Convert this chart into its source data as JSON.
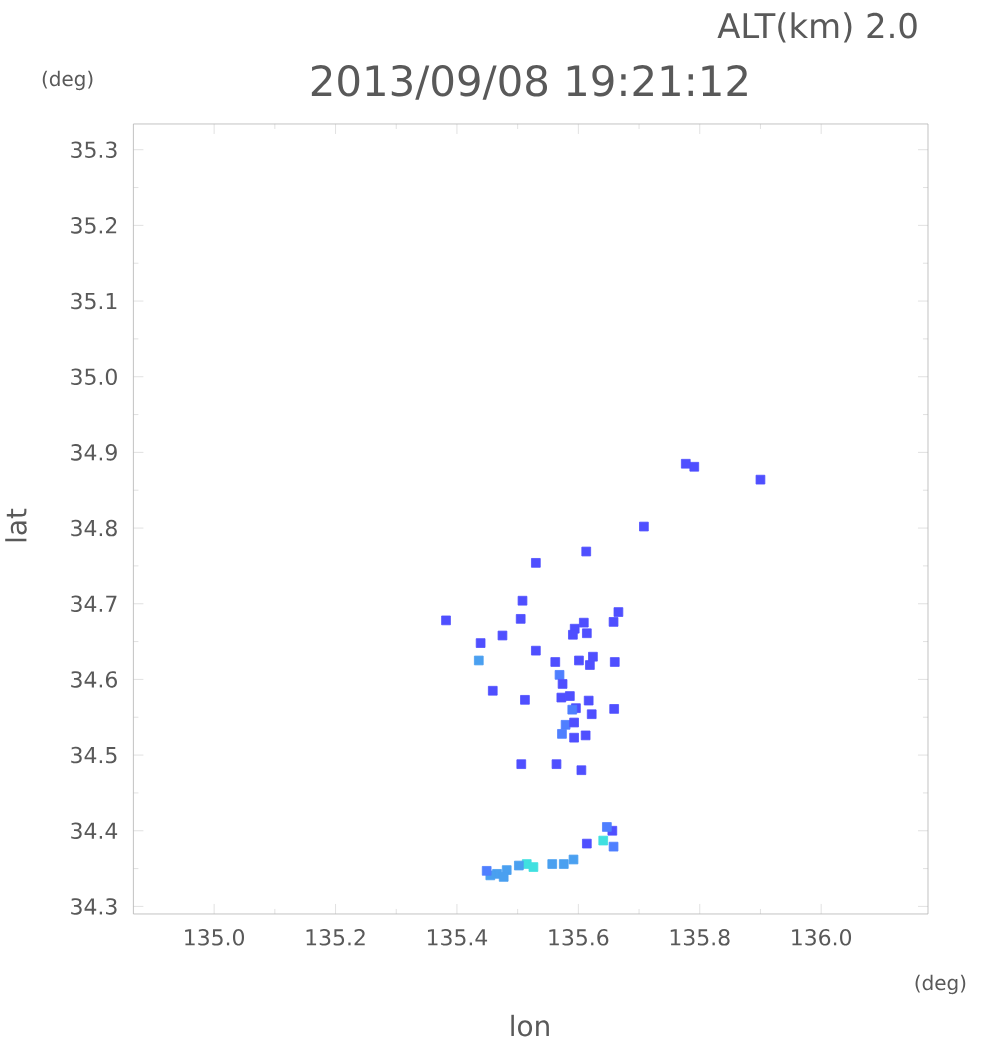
{
  "chart_data": {
    "type": "scatter",
    "title": "2013/09/08 19:21:12",
    "xlabel": "lon",
    "ylabel": "lat",
    "annotations": [
      "ALT(km) 2.0",
      "(deg)",
      "(deg)"
    ],
    "xlim": [
      134.867,
      136.176
    ],
    "ylim": [
      34.29,
      35.334
    ],
    "xticks": [
      {
        "value": 135.0,
        "label": "135.0"
      },
      {
        "value": 135.2,
        "label": "135.2"
      },
      {
        "value": 135.4,
        "label": "135.4"
      },
      {
        "value": 135.6,
        "label": "135.6"
      },
      {
        "value": 135.8,
        "label": "135.8"
      },
      {
        "value": 136.0,
        "label": "136.0"
      }
    ],
    "yticks": [
      {
        "value": 34.3,
        "label": "34.3"
      },
      {
        "value": 34.4,
        "label": "34.4"
      },
      {
        "value": 34.5,
        "label": "34.5"
      },
      {
        "value": 34.6,
        "label": "34.6"
      },
      {
        "value": 34.7,
        "label": "34.7"
      },
      {
        "value": 34.8,
        "label": "34.8"
      },
      {
        "value": 34.9,
        "label": "34.9"
      },
      {
        "value": 35.0,
        "label": "35.0"
      },
      {
        "value": 35.1,
        "label": "35.1"
      },
      {
        "value": 35.2,
        "label": "35.2"
      },
      {
        "value": 35.3,
        "label": "35.3"
      }
    ],
    "marker": "square",
    "x": [
      135.777,
      135.791,
      135.9,
      135.708,
      135.613,
      135.53,
      135.508,
      135.382,
      135.505,
      135.666,
      135.609,
      135.594,
      135.614,
      135.591,
      135.475,
      135.658,
      135.439,
      135.53,
      135.436,
      135.562,
      135.601,
      135.624,
      135.619,
      135.66,
      135.569,
      135.574,
      135.459,
      135.512,
      135.572,
      135.586,
      135.617,
      135.596,
      135.59,
      135.622,
      135.659,
      135.579,
      135.593,
      135.573,
      135.593,
      135.612,
      135.506,
      135.564,
      135.605,
      135.614,
      135.641,
      135.656,
      135.647,
      135.658,
      135.592,
      135.576,
      135.557,
      135.515,
      135.502,
      135.526,
      135.482,
      135.466,
      135.455,
      135.477,
      135.449
    ],
    "values": [
      34.885,
      34.881,
      34.864,
      34.802,
      34.769,
      34.754,
      34.704,
      34.678,
      34.68,
      34.689,
      34.675,
      34.667,
      34.661,
      34.659,
      34.658,
      34.676,
      34.648,
      34.638,
      34.625,
      34.623,
      34.625,
      34.63,
      34.619,
      34.623,
      34.606,
      34.594,
      34.585,
      34.573,
      34.576,
      34.578,
      34.572,
      34.562,
      34.56,
      34.554,
      34.561,
      34.54,
      34.543,
      34.528,
      34.523,
      34.526,
      34.488,
      34.488,
      34.48,
      34.383,
      34.387,
      34.4,
      34.405,
      34.379,
      34.362,
      34.356,
      34.356,
      34.356,
      34.354,
      34.352,
      34.348,
      34.343,
      34.341,
      34.339,
      34.347
    ],
    "colors": [
      "#4f4fff",
      "#4f4fff",
      "#4f4fff",
      "#4f4fff",
      "#4f4fff",
      "#4f4fff",
      "#4f4fff",
      "#4f4fff",
      "#4f4fff",
      "#4f4fff",
      "#4f4fff",
      "#4f4fff",
      "#4f4fff",
      "#4f4fff",
      "#4f4fff",
      "#4f4fff",
      "#4f4fff",
      "#4f4fff",
      "#4aa0f0",
      "#4f4fff",
      "#4f4fff",
      "#4f4fff",
      "#4f4fff",
      "#4f4fff",
      "#4f7fff",
      "#4f4fff",
      "#4f4fff",
      "#4f4fff",
      "#4f4fff",
      "#4f4fff",
      "#4f4fff",
      "#4f4fff",
      "#4f7fff",
      "#4f4fff",
      "#4f4fff",
      "#4f7fff",
      "#4f4fff",
      "#4f7fff",
      "#4f4fff",
      "#4f4fff",
      "#4f4fff",
      "#4f4fff",
      "#4f4fff",
      "#4f4fff",
      "#40e0e0",
      "#4f4fff",
      "#4f7fff",
      "#4f7fff",
      "#4aa0f0",
      "#4aa0f0",
      "#4aa0f0",
      "#40e0e0",
      "#4aa0f0",
      "#40e0e0",
      "#4aa0f0",
      "#4aa0f0",
      "#4aa0f0",
      "#4aa0f0",
      "#4f7fff"
    ]
  }
}
